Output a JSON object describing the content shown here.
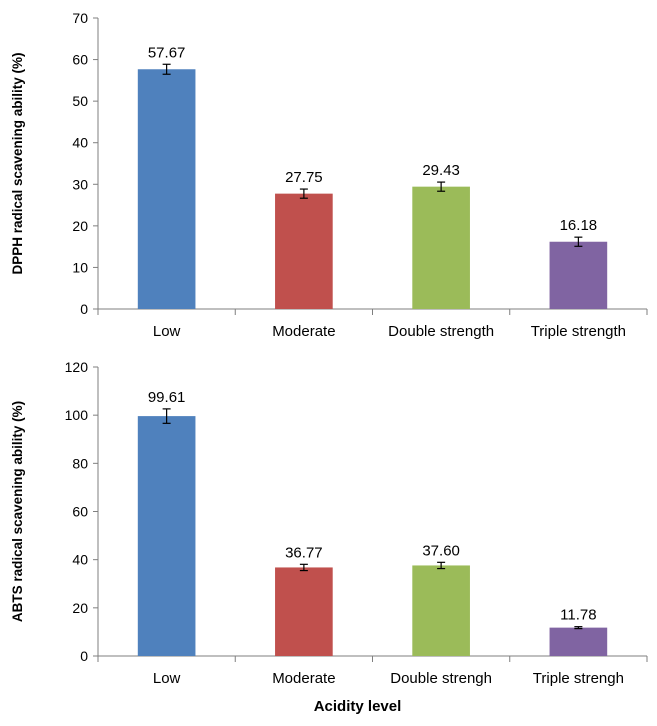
{
  "chart_data": [
    {
      "type": "bar",
      "title": "",
      "xlabel": "",
      "ylabel": "DPPH radical scavening ability (%)",
      "ylim": [
        0,
        70
      ],
      "yticks": [
        0,
        10,
        20,
        30,
        40,
        50,
        60,
        70
      ],
      "categories": [
        "Low",
        "Moderate",
        "Double strength",
        "Triple strength"
      ],
      "values": [
        57.67,
        27.75,
        29.43,
        16.18
      ],
      "errors": [
        1.2,
        1.1,
        1.1,
        1.1
      ],
      "data_labels": [
        "57.67",
        "27.75",
        "29.43",
        "16.18"
      ],
      "colors": [
        "#4f81bd",
        "#c0504d",
        "#9bbb59",
        "#8064a2"
      ],
      "grid": false,
      "legend": "none"
    },
    {
      "type": "bar",
      "title": "",
      "xlabel": "Acidity level",
      "ylabel": "ABTS radical scavening ability (%)",
      "ylim": [
        0,
        120
      ],
      "yticks": [
        0,
        20,
        40,
        60,
        80,
        100,
        120
      ],
      "categories": [
        "Low",
        "Moderate",
        "Double strengh",
        "Triple strengh"
      ],
      "values": [
        99.61,
        36.77,
        37.6,
        11.78
      ],
      "errors": [
        3.0,
        1.3,
        1.3,
        0.4
      ],
      "data_labels": [
        "99.61",
        "36.77",
        "37.60",
        "11.78"
      ],
      "colors": [
        "#4f81bd",
        "#c0504d",
        "#9bbb59",
        "#8064a2"
      ],
      "grid": false,
      "legend": "none"
    }
  ]
}
